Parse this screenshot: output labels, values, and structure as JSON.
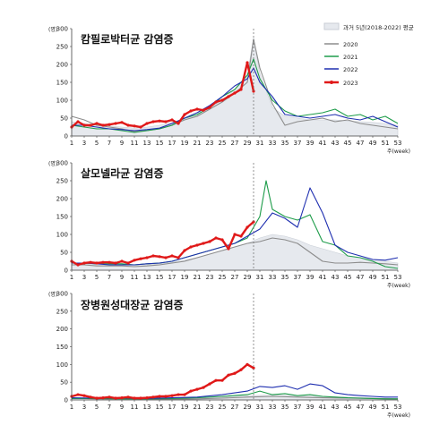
{
  "colors": {
    "avg_fill": "#e6e9ee",
    "avg_stroke": "#c9ced6",
    "y2020": "#8c8c8c",
    "y2021": "#1e9c4a",
    "y2022": "#1f2fb0",
    "y2023": "#e01818",
    "vline": "#666666",
    "axis": "#444444"
  },
  "common": {
    "y_unit": "(명)",
    "x_unit": "주(week)",
    "x_ticks": [
      "1",
      "3",
      "5",
      "7",
      "9",
      "11",
      "13",
      "15",
      "17",
      "19",
      "21",
      "23",
      "25",
      "27",
      "29",
      "31",
      "33",
      "35",
      "37",
      "39",
      "41",
      "43",
      "45",
      "47",
      "49",
      "51",
      "53"
    ],
    "y_ticks": [
      "0",
      "50",
      "100",
      "150",
      "200",
      "250",
      "300"
    ]
  },
  "legend": {
    "avg": "과거 5년(2018-2022) 평균",
    "s2020": "2020",
    "s2021": "2021",
    "s2022": "2022",
    "s2023": "2023"
  },
  "chart_data": [
    {
      "type": "line",
      "title": "캄필로박터균 감염증",
      "ylim": [
        0,
        300
      ],
      "xlim": [
        1,
        53
      ],
      "vline_week": 30,
      "series": [
        {
          "name": "과거 5년(2018-2022) 평균",
          "kind": "area",
          "x": [
            1,
            3,
            5,
            7,
            9,
            11,
            13,
            15,
            17,
            19,
            21,
            23,
            25,
            27,
            29,
            30,
            31,
            33,
            35,
            37,
            39,
            41,
            43,
            45,
            47,
            49,
            51,
            53
          ],
          "y": [
            40,
            35,
            30,
            28,
            25,
            22,
            25,
            30,
            38,
            48,
            60,
            80,
            100,
            130,
            170,
            275,
            175,
            80,
            55,
            50,
            45,
            45,
            45,
            42,
            40,
            38,
            35,
            30
          ]
        },
        {
          "name": "2020",
          "x": [
            1,
            3,
            5,
            7,
            9,
            11,
            13,
            15,
            17,
            19,
            21,
            23,
            25,
            27,
            29,
            30,
            31,
            33,
            35,
            37,
            39,
            41,
            43,
            45,
            47,
            49,
            51,
            53
          ],
          "y": [
            55,
            45,
            30,
            25,
            20,
            12,
            15,
            20,
            30,
            45,
            55,
            75,
            95,
            120,
            150,
            270,
            190,
            90,
            30,
            40,
            45,
            50,
            40,
            45,
            35,
            30,
            25,
            20
          ]
        },
        {
          "name": "2021",
          "x": [
            1,
            3,
            5,
            7,
            9,
            11,
            13,
            15,
            17,
            19,
            21,
            23,
            25,
            27,
            29,
            30,
            31,
            33,
            35,
            37,
            39,
            41,
            43,
            45,
            47,
            49,
            51,
            53
          ],
          "y": [
            30,
            25,
            20,
            20,
            15,
            10,
            15,
            20,
            30,
            50,
            60,
            80,
            110,
            130,
            170,
            215,
            160,
            100,
            70,
            55,
            60,
            65,
            75,
            55,
            60,
            45,
            55,
            35
          ]
        },
        {
          "name": "2022",
          "x": [
            1,
            3,
            5,
            7,
            9,
            11,
            13,
            15,
            17,
            19,
            21,
            23,
            25,
            27,
            29,
            30,
            31,
            33,
            35,
            37,
            39,
            41,
            43,
            45,
            47,
            49,
            51,
            53
          ],
          "y": [
            30,
            30,
            25,
            20,
            18,
            15,
            18,
            22,
            35,
            50,
            65,
            85,
            110,
            140,
            160,
            190,
            150,
            110,
            60,
            55,
            50,
            55,
            60,
            50,
            45,
            55,
            40,
            25
          ]
        },
        {
          "name": "2023",
          "x": [
            1,
            2,
            3,
            4,
            5,
            6,
            7,
            8,
            9,
            10,
            11,
            12,
            13,
            14,
            15,
            16,
            17,
            18,
            19,
            20,
            21,
            22,
            23,
            24,
            25,
            26,
            27,
            28,
            29,
            30
          ],
          "y": [
            25,
            40,
            30,
            30,
            35,
            30,
            32,
            35,
            38,
            30,
            28,
            25,
            35,
            40,
            42,
            40,
            45,
            35,
            60,
            70,
            75,
            72,
            80,
            95,
            100,
            110,
            120,
            130,
            205,
            125
          ]
        }
      ]
    },
    {
      "type": "line",
      "title": "살모넬라균 감염증",
      "ylim": [
        0,
        300
      ],
      "xlim": [
        1,
        53
      ],
      "vline_week": 30,
      "series": [
        {
          "name": "과거 5년(2018-2022) 평균",
          "kind": "area",
          "x": [
            1,
            3,
            5,
            7,
            9,
            11,
            13,
            15,
            17,
            19,
            21,
            23,
            25,
            27,
            29,
            31,
            33,
            35,
            37,
            39,
            41,
            43,
            45,
            47,
            49,
            51,
            53
          ],
          "y": [
            20,
            18,
            15,
            15,
            15,
            15,
            15,
            18,
            22,
            28,
            35,
            45,
            55,
            65,
            75,
            90,
            100,
            95,
            85,
            70,
            60,
            50,
            40,
            35,
            30,
            25,
            20
          ]
        },
        {
          "name": "2020",
          "x": [
            1,
            3,
            5,
            7,
            9,
            11,
            13,
            15,
            17,
            19,
            21,
            23,
            25,
            27,
            29,
            31,
            33,
            35,
            37,
            39,
            41,
            43,
            45,
            47,
            49,
            51,
            53
          ],
          "y": [
            15,
            15,
            12,
            12,
            12,
            10,
            12,
            15,
            20,
            25,
            35,
            45,
            55,
            65,
            75,
            80,
            90,
            85,
            75,
            50,
            25,
            20,
            20,
            22,
            20,
            18,
            15
          ]
        },
        {
          "name": "2021",
          "x": [
            1,
            3,
            5,
            7,
            9,
            11,
            13,
            15,
            17,
            19,
            21,
            23,
            25,
            27,
            29,
            31,
            32,
            33,
            35,
            37,
            39,
            41,
            43,
            45,
            47,
            49,
            51,
            53
          ],
          "y": [
            20,
            20,
            18,
            18,
            18,
            15,
            18,
            20,
            25,
            35,
            45,
            55,
            65,
            75,
            90,
            150,
            250,
            170,
            150,
            140,
            155,
            80,
            70,
            40,
            35,
            25,
            10,
            5
          ]
        },
        {
          "name": "2022",
          "x": [
            1,
            3,
            5,
            7,
            9,
            11,
            13,
            15,
            17,
            19,
            21,
            23,
            25,
            27,
            29,
            31,
            33,
            35,
            37,
            39,
            41,
            43,
            45,
            47,
            49,
            51,
            53
          ],
          "y": [
            20,
            20,
            18,
            15,
            15,
            15,
            18,
            20,
            25,
            35,
            45,
            55,
            65,
            75,
            95,
            115,
            160,
            145,
            120,
            230,
            160,
            70,
            50,
            40,
            30,
            28,
            35
          ]
        },
        {
          "name": "2023",
          "x": [
            1,
            2,
            3,
            4,
            5,
            6,
            7,
            8,
            9,
            10,
            11,
            12,
            13,
            14,
            15,
            16,
            17,
            18,
            19,
            20,
            21,
            22,
            23,
            24,
            25,
            26,
            27,
            28,
            29,
            30
          ],
          "y": [
            25,
            15,
            20,
            22,
            20,
            22,
            22,
            20,
            25,
            20,
            28,
            32,
            35,
            40,
            38,
            35,
            40,
            35,
            55,
            65,
            70,
            75,
            80,
            90,
            85,
            60,
            100,
            95,
            120,
            135
          ]
        }
      ]
    },
    {
      "type": "line",
      "title": "장병원성대장균 감염증",
      "ylim": [
        0,
        300
      ],
      "xlim": [
        1,
        53
      ],
      "vline_week": 30,
      "series": [
        {
          "name": "과거 5년(2018-2022) 평균",
          "kind": "area",
          "x": [
            1,
            5,
            9,
            13,
            17,
            21,
            25,
            29,
            33,
            37,
            41,
            45,
            49,
            53
          ],
          "y": [
            4,
            3,
            3,
            3,
            4,
            6,
            8,
            12,
            14,
            12,
            10,
            8,
            6,
            4
          ]
        },
        {
          "name": "2020",
          "x": [
            1,
            5,
            9,
            13,
            17,
            21,
            25,
            29,
            33,
            37,
            41,
            45,
            49,
            53
          ],
          "y": [
            5,
            3,
            3,
            2,
            2,
            3,
            5,
            8,
            10,
            8,
            6,
            5,
            4,
            3
          ]
        },
        {
          "name": "2021",
          "x": [
            1,
            5,
            9,
            13,
            17,
            21,
            25,
            29,
            31,
            33,
            35,
            37,
            39,
            41,
            43,
            45,
            47,
            49,
            51,
            53
          ],
          "y": [
            4,
            4,
            3,
            3,
            4,
            6,
            10,
            15,
            25,
            15,
            18,
            12,
            15,
            10,
            8,
            6,
            5,
            4,
            3,
            3
          ]
        },
        {
          "name": "2022",
          "x": [
            1,
            5,
            9,
            13,
            17,
            21,
            25,
            29,
            31,
            33,
            35,
            37,
            39,
            41,
            43,
            45,
            47,
            49,
            51,
            53
          ],
          "y": [
            6,
            5,
            5,
            4,
            6,
            8,
            15,
            25,
            38,
            35,
            40,
            30,
            45,
            40,
            20,
            15,
            12,
            10,
            8,
            8
          ]
        },
        {
          "name": "2023",
          "x": [
            1,
            2,
            3,
            4,
            5,
            6,
            7,
            8,
            9,
            10,
            11,
            12,
            13,
            14,
            15,
            16,
            17,
            18,
            19,
            20,
            21,
            22,
            23,
            24,
            25,
            26,
            27,
            28,
            29,
            30
          ],
          "y": [
            10,
            15,
            12,
            8,
            5,
            6,
            8,
            5,
            6,
            8,
            5,
            5,
            6,
            8,
            10,
            10,
            12,
            15,
            15,
            25,
            30,
            35,
            45,
            55,
            55,
            70,
            75,
            85,
            100,
            90
          ]
        }
      ]
    }
  ]
}
